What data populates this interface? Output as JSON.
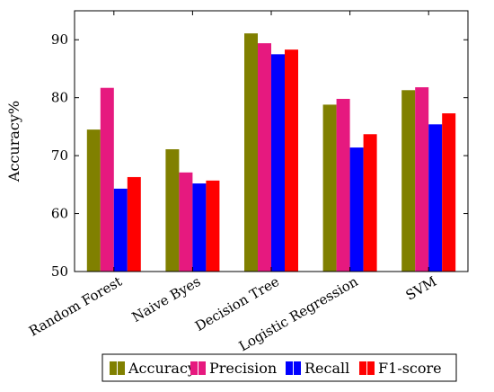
{
  "chart_data": {
    "type": "bar",
    "title": "",
    "xlabel": "",
    "ylabel": "Accuracy%",
    "ylim": [
      50,
      95
    ],
    "yticks": [
      50,
      60,
      70,
      80,
      90
    ],
    "grid": false,
    "legend_position": "bottom",
    "categories": [
      "Random Forest",
      "Naive Byes",
      "Decision Tree",
      "Logistic Regression",
      "SVM"
    ],
    "series": [
      {
        "name": "Accuracy",
        "color": "#808000",
        "values": [
          74.5,
          71.1,
          91.1,
          78.8,
          81.3
        ]
      },
      {
        "name": "Precision",
        "color": "#e6197f",
        "values": [
          81.7,
          67.1,
          89.4,
          79.8,
          81.8
        ]
      },
      {
        "name": "Recall",
        "color": "#0000ff",
        "values": [
          64.3,
          65.2,
          87.5,
          71.4,
          75.4
        ]
      },
      {
        "name": "F1-score",
        "color": "#ff0000",
        "values": [
          66.3,
          65.7,
          88.3,
          73.7,
          77.3
        ]
      }
    ]
  }
}
